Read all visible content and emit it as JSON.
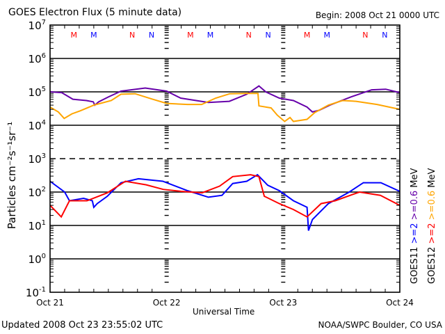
{
  "header": {
    "title": "GOES Electron Flux (5 minute data)",
    "begin": "Begin: 2008 Oct 21 0000 UTC"
  },
  "footer": {
    "updated": "Updated 2008 Oct 23 23:55:02 UTC",
    "credit": "NOAA/SWPC Boulder, CO USA"
  },
  "chart_data": {
    "type": "line",
    "title": "GOES Electron Flux (5 minute data)",
    "xlabel": "Universal Time",
    "ylabel": "Particles cm⁻²s⁻¹sr⁻¹",
    "x_units": "hours since 2008 Oct 21 0000 UTC",
    "xlim": [
      0,
      72
    ],
    "ylim": [
      0.1,
      10000000
    ],
    "yscale": "log",
    "grid": "horizontal decade lines (10^3 dashed), day divider tick columns",
    "x_ticks": [
      {
        "x": 0,
        "label": "Oct 21"
      },
      {
        "x": 24,
        "label": "Oct 22"
      },
      {
        "x": 48,
        "label": "Oct 23"
      },
      {
        "x": 72,
        "label": "Oct 24"
      }
    ],
    "y_ticks": [
      {
        "exp": "7",
        "value": 10000000
      },
      {
        "exp": "6",
        "value": 1000000
      },
      {
        "exp": "5",
        "value": 100000
      },
      {
        "exp": "4",
        "value": 10000
      },
      {
        "exp": "3",
        "value": 1000
      },
      {
        "exp": "2",
        "value": 100
      },
      {
        "exp": "1",
        "value": 10
      },
      {
        "exp": "0",
        "value": 1
      },
      {
        "exp": "-1",
        "value": 0.1
      }
    ],
    "legend": {
      "placement": "right (vertical text)",
      "entries": [
        {
          "text": "GOES11",
          "color": "#000000"
        },
        {
          "text": ">=2",
          "color": "#0000ff"
        },
        {
          "text": ">=0.6",
          "color": "#6600aa"
        },
        {
          "text": "MeV",
          "color": "#000000"
        },
        {
          "text": "GOES12",
          "color": "#000000"
        },
        {
          "text": ">=2",
          "color": "#ff0000"
        },
        {
          "text": ">=0.6",
          "color": "#ffa500"
        },
        {
          "text": "MeV",
          "color": "#000000"
        }
      ]
    },
    "markers": [
      {
        "label": "M",
        "x": 4.9,
        "color": "#ff0000"
      },
      {
        "label": "M",
        "x": 9.0,
        "color": "#0000ff"
      },
      {
        "label": "N",
        "x": 16.9,
        "color": "#ff0000"
      },
      {
        "label": "N",
        "x": 20.9,
        "color": "#0000ff"
      },
      {
        "label": "M",
        "x": 28.9,
        "color": "#ff0000"
      },
      {
        "label": "M",
        "x": 33.0,
        "color": "#0000ff"
      },
      {
        "label": "N",
        "x": 40.9,
        "color": "#ff0000"
      },
      {
        "label": "N",
        "x": 44.9,
        "color": "#0000ff"
      },
      {
        "label": "M",
        "x": 52.9,
        "color": "#ff0000"
      },
      {
        "label": "M",
        "x": 57.0,
        "color": "#0000ff"
      },
      {
        "label": "N",
        "x": 64.9,
        "color": "#ff0000"
      },
      {
        "label": "N",
        "x": 68.9,
        "color": "#0000ff"
      }
    ],
    "series": [
      {
        "name": "GOES11 >=0.6 MeV",
        "color": "#6600aa",
        "x": [
          0,
          2.4,
          4.7,
          7.5,
          8.9,
          9.2,
          10.0,
          12.0,
          14.6,
          19.6,
          24.0,
          26.9,
          32.6,
          36.9,
          40.5,
          42.7,
          43.0,
          44.4,
          47.2,
          50.1,
          52.9,
          54.0,
          55.4,
          57.6,
          61.9,
          66.2,
          69.1,
          72.0
        ],
        "y": [
          100000,
          95000,
          60000,
          55000,
          50000,
          40000,
          50000,
          70000,
          105000,
          130000,
          105000,
          65000,
          48000,
          52000,
          85000,
          140000,
          150000,
          100000,
          65000,
          55000,
          35000,
          25000,
          28000,
          40000,
          70000,
          115000,
          120000,
          95000
        ]
      },
      {
        "name": "GOES12 >=0.6 MeV",
        "color": "#ffa500",
        "x": [
          0,
          1.7,
          2.9,
          4.5,
          6.2,
          9.0,
          12.6,
          14.6,
          17.5,
          21.1,
          24.0,
          28.3,
          31.2,
          34.1,
          37.0,
          40.5,
          42.8,
          43.0,
          45.5,
          46.8,
          48.3,
          49.4,
          50.1,
          52.9,
          54.5,
          57.3,
          60.2,
          63.0,
          67.3,
          72.0
        ],
        "y": [
          35000,
          25000,
          16000,
          22000,
          27000,
          40000,
          55000,
          85000,
          88000,
          60000,
          45000,
          42000,
          42000,
          65000,
          88000,
          90000,
          90000,
          38000,
          33000,
          20000,
          13000,
          17000,
          13000,
          15000,
          24000,
          40000,
          55000,
          52000,
          42000,
          30000
        ]
      },
      {
        "name": "GOES11 >=2 MeV",
        "color": "#0000ff",
        "x": [
          0,
          3.0,
          4.0,
          6.9,
          8.7,
          9.0,
          9.7,
          11.8,
          14.6,
          18.2,
          23.2,
          28.3,
          32.6,
          35.4,
          37.6,
          40.5,
          42.7,
          44.8,
          47.2,
          50.1,
          52.9,
          53.2,
          54.0,
          57.3,
          61.6,
          64.5,
          68.1,
          72.0
        ],
        "y": [
          210.0,
          100,
          55,
          65,
          55,
          35,
          45,
          75,
          190,
          250,
          210,
          110,
          70,
          80,
          180,
          210,
          330,
          160,
          110,
          55,
          35,
          7,
          15,
          45,
          100,
          190,
          190,
          105
        ]
      },
      {
        "name": "GOES12 >=2 MeV",
        "color": "#ff0000",
        "x": [
          0,
          2.3,
          4.0,
          7.6,
          11.8,
          15.5,
          19.8,
          23.3,
          27.0,
          31.3,
          34.9,
          37.6,
          41.3,
          43.0,
          44.1,
          47.2,
          50.1,
          52.9,
          55.8,
          58.7,
          63.7,
          68.0,
          72.0
        ],
        "y": [
          40,
          18,
          55,
          55,
          95,
          210,
          165,
          120,
          105,
          95,
          150,
          290,
          330,
          290,
          75,
          45,
          30,
          18,
          45,
          55,
          100,
          80,
          40
        ]
      }
    ]
  }
}
